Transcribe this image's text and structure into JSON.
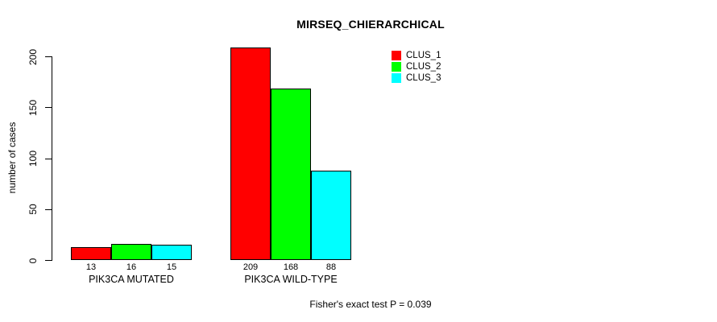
{
  "chart_data": {
    "type": "bar",
    "title": "MIRSEQ_CHIERARCHICAL",
    "ylabel": "number of cases",
    "xlabel": "",
    "categories": [
      "PIK3CA MUTATED",
      "PIK3CA WILD-TYPE"
    ],
    "series": [
      {
        "name": "CLUS_1",
        "color": "#ff0000",
        "values": [
          13,
          209
        ]
      },
      {
        "name": "CLUS_2",
        "color": "#00ff00",
        "values": [
          16,
          168
        ]
      },
      {
        "name": "CLUS_3",
        "color": "#00ffff",
        "values": [
          15,
          88
        ]
      }
    ],
    "yticks": [
      0,
      50,
      100,
      150,
      200
    ],
    "ylim": [
      0,
      209
    ],
    "grid": false,
    "legend_position": "top-right",
    "annotation": "Fisher's exact test P = 0.039"
  }
}
